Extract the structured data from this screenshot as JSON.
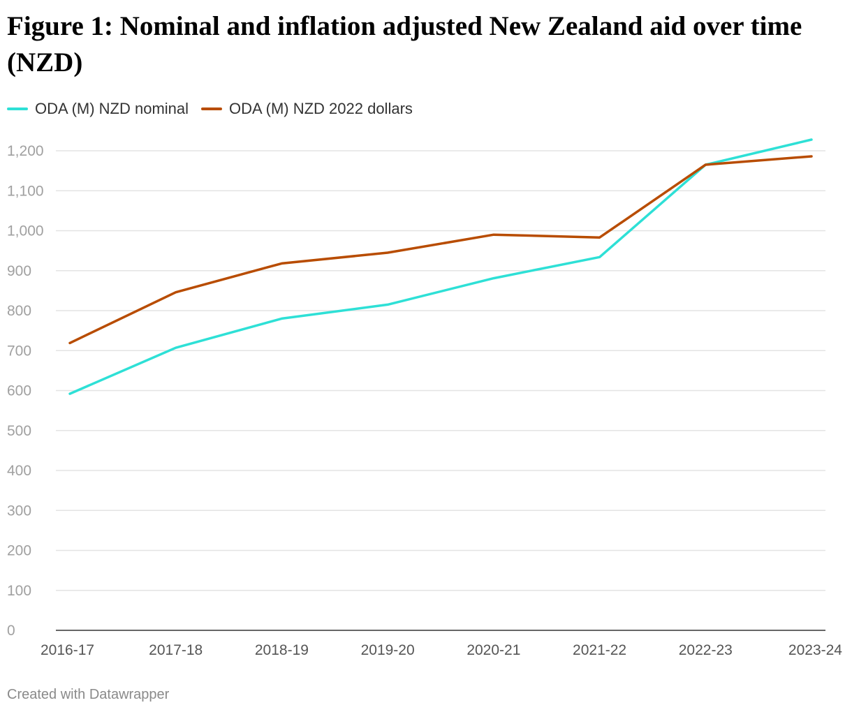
{
  "chart_data": {
    "type": "line",
    "title": "Figure 1: Nominal and inflation adjusted New Zealand aid over time (NZD)",
    "xlabel": "",
    "ylabel": "",
    "categories": [
      "2016-17",
      "2017-18",
      "2018-19",
      "2019-20",
      "2020-21",
      "2021-22",
      "2022-23",
      "2023-24"
    ],
    "y_ticks": [
      "0",
      "100",
      "200",
      "300",
      "400",
      "500",
      "600",
      "700",
      "800",
      "900",
      "1,000",
      "1,100",
      "1,200"
    ],
    "ylim": [
      0,
      1200
    ],
    "grid": true,
    "legend_position": "top-left",
    "series": [
      {
        "name": "ODA (M) NZD nominal",
        "color": "#2ee0d6",
        "values": [
          592,
          707,
          780,
          815,
          881,
          934,
          1165,
          1228
        ]
      },
      {
        "name": "ODA (M) NZD 2022 dollars",
        "color": "#b84c00",
        "values": [
          719,
          846,
          918,
          945,
          990,
          983,
          1165,
          1186
        ]
      }
    ]
  },
  "footer": "Created with Datawrapper"
}
